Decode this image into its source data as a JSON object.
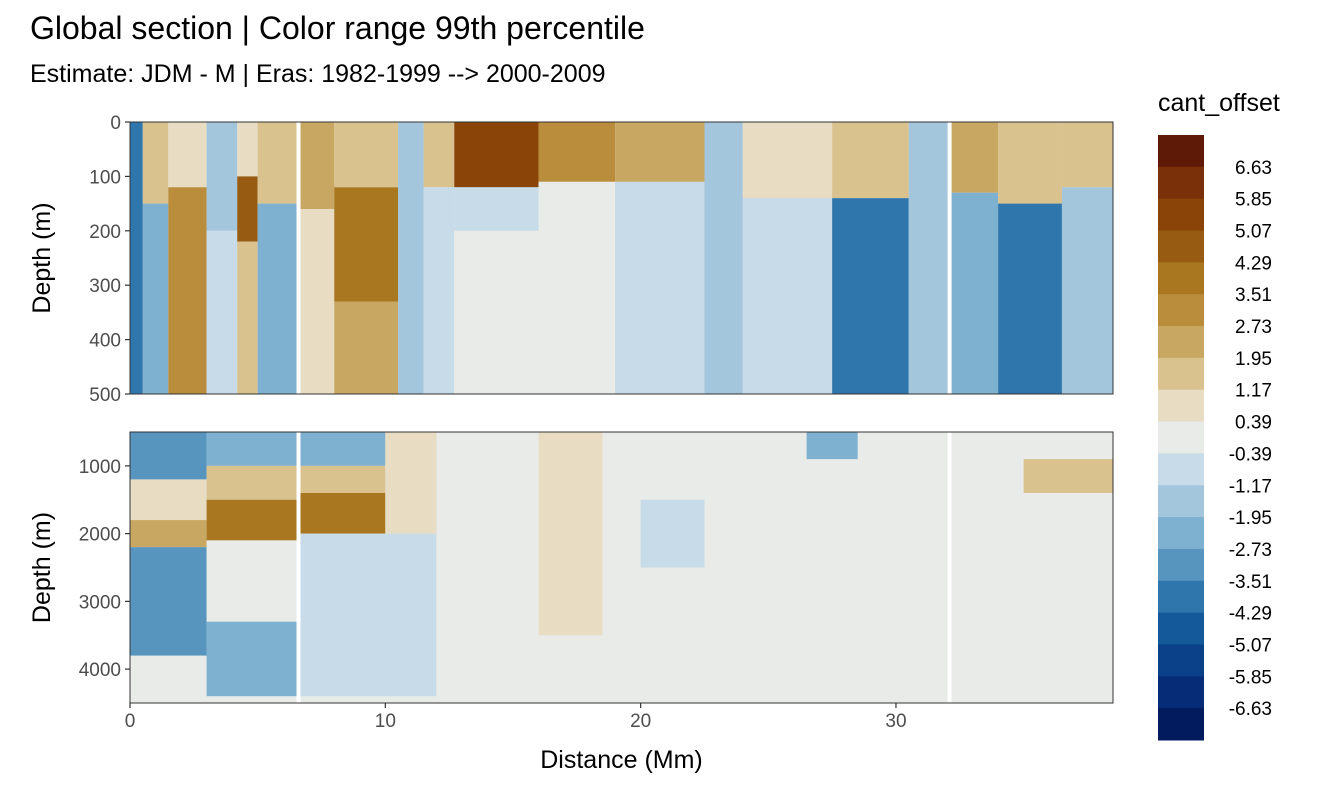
{
  "title": "Global section | Color range 99th percentile",
  "subtitle": "Estimate: JDM - M | Eras: 1982-1999 --> 2000-2009",
  "chart_data": {
    "type": "heatmap",
    "description_panels": [
      "top",
      "bottom"
    ],
    "x_label": "Distance (Mm)",
    "x_range": [
      0,
      38.5
    ],
    "x_ticks": [
      {
        "value": 0,
        "label": "0"
      },
      {
        "value": 10,
        "label": "10"
      },
      {
        "value": 20,
        "label": "20"
      },
      {
        "value": 30,
        "label": "30"
      }
    ],
    "panels": [
      {
        "id": "top",
        "y_label": "Depth (m)",
        "y_range": [
          0,
          500
        ],
        "y_reversed": true,
        "y_ticks": [
          {
            "value": 0,
            "label": "0"
          },
          {
            "value": 100,
            "label": "100"
          },
          {
            "value": 200,
            "label": "200"
          },
          {
            "value": 300,
            "label": "300"
          },
          {
            "value": 400,
            "label": "400"
          },
          {
            "value": 500,
            "label": "500"
          }
        ]
      },
      {
        "id": "bottom",
        "y_label": "Depth (m)",
        "y_range": [
          500,
          4500
        ],
        "y_reversed": true,
        "y_ticks": [
          {
            "value": 1000,
            "label": "1000"
          },
          {
            "value": 2000,
            "label": "2000"
          },
          {
            "value": 3000,
            "label": "3000"
          },
          {
            "value": 4000,
            "label": "4000"
          }
        ]
      }
    ],
    "section_breaks_x": [
      6.6,
      32.1
    ],
    "legend": {
      "title": "cant_offset",
      "labels": [
        "6.63",
        "5.85",
        "5.07",
        "4.29",
        "3.51",
        "2.73",
        "1.95",
        "1.17",
        "0.39",
        "-0.39",
        "-1.17",
        "-1.95",
        "-2.73",
        "-3.51",
        "-4.29",
        "-5.07",
        "-5.85",
        "-6.63"
      ],
      "colors": [
        "#5e1a06",
        "#7a3008",
        "#8a4408",
        "#975b12",
        "#a8771f",
        "#b98d3c",
        "#c8a762",
        "#d9c28d",
        "#e8dcc3",
        "#e8ebe8",
        "#c7dbe8",
        "#a4c6dc",
        "#7eb0cf",
        "#5795bf",
        "#2f76ac",
        "#14599a",
        "#0b4189",
        "#062c78",
        "#021a5e"
      ]
    },
    "regions": {
      "top": [
        {
          "x0": 0,
          "x1": 0.5,
          "y0": 0,
          "y1": 500,
          "v": -5
        },
        {
          "x0": 0.5,
          "x1": 1.5,
          "y0": 0,
          "y1": 150,
          "v": 2
        },
        {
          "x0": 0.5,
          "x1": 1.5,
          "y0": 150,
          "y1": 500,
          "v": -3
        },
        {
          "x0": 1.5,
          "x1": 3.0,
          "y0": 0,
          "y1": 120,
          "v": 1
        },
        {
          "x0": 1.5,
          "x1": 3.0,
          "y0": 120,
          "y1": 500,
          "v": 4
        },
        {
          "x0": 3.0,
          "x1": 4.2,
          "y0": 0,
          "y1": 200,
          "v": -2
        },
        {
          "x0": 3.0,
          "x1": 4.2,
          "y0": 200,
          "y1": 500,
          "v": -1
        },
        {
          "x0": 4.2,
          "x1": 5.0,
          "y0": 0,
          "y1": 100,
          "v": 1
        },
        {
          "x0": 4.2,
          "x1": 5.0,
          "y0": 100,
          "y1": 220,
          "v": 6
        },
        {
          "x0": 4.2,
          "x1": 5.0,
          "y0": 220,
          "y1": 500,
          "v": 2
        },
        {
          "x0": 5.0,
          "x1": 6.6,
          "y0": 0,
          "y1": 150,
          "v": 2
        },
        {
          "x0": 5.0,
          "x1": 6.6,
          "y0": 150,
          "y1": 500,
          "v": -3
        },
        {
          "x0": 6.6,
          "x1": 8.0,
          "y0": 0,
          "y1": 160,
          "v": 3
        },
        {
          "x0": 6.6,
          "x1": 8.0,
          "y0": 160,
          "y1": 500,
          "v": 1
        },
        {
          "x0": 8.0,
          "x1": 10.5,
          "y0": 0,
          "y1": 120,
          "v": 2
        },
        {
          "x0": 8.0,
          "x1": 10.5,
          "y0": 120,
          "y1": 330,
          "v": 5
        },
        {
          "x0": 8.0,
          "x1": 10.5,
          "y0": 330,
          "y1": 500,
          "v": 3
        },
        {
          "x0": 10.5,
          "x1": 11.5,
          "y0": 0,
          "y1": 500,
          "v": -2
        },
        {
          "x0": 11.5,
          "x1": 12.7,
          "y0": 0,
          "y1": 120,
          "v": 2
        },
        {
          "x0": 11.5,
          "x1": 12.7,
          "y0": 120,
          "y1": 500,
          "v": -1
        },
        {
          "x0": 12.7,
          "x1": 16.0,
          "y0": 0,
          "y1": 120,
          "v": 7
        },
        {
          "x0": 12.7,
          "x1": 16.0,
          "y0": 120,
          "y1": 200,
          "v": -1
        },
        {
          "x0": 12.7,
          "x1": 16.0,
          "y0": 200,
          "y1": 500,
          "v": 0
        },
        {
          "x0": 16.0,
          "x1": 19.0,
          "y0": 0,
          "y1": 110,
          "v": 4
        },
        {
          "x0": 16.0,
          "x1": 19.0,
          "y0": 110,
          "y1": 500,
          "v": 0
        },
        {
          "x0": 19.0,
          "x1": 22.5,
          "y0": 0,
          "y1": 110,
          "v": 3
        },
        {
          "x0": 19.0,
          "x1": 22.5,
          "y0": 110,
          "y1": 500,
          "v": -1
        },
        {
          "x0": 22.5,
          "x1": 24.0,
          "y0": 0,
          "y1": 500,
          "v": -2
        },
        {
          "x0": 24.0,
          "x1": 27.5,
          "y0": 0,
          "y1": 140,
          "v": 1
        },
        {
          "x0": 24.0,
          "x1": 27.5,
          "y0": 140,
          "y1": 500,
          "v": -1
        },
        {
          "x0": 27.5,
          "x1": 30.5,
          "y0": 0,
          "y1": 140,
          "v": 2
        },
        {
          "x0": 27.5,
          "x1": 30.5,
          "y0": 140,
          "y1": 500,
          "v": -5
        },
        {
          "x0": 30.5,
          "x1": 32.1,
          "y0": 0,
          "y1": 500,
          "v": -2
        },
        {
          "x0": 32.1,
          "x1": 34.0,
          "y0": 0,
          "y1": 130,
          "v": 3
        },
        {
          "x0": 32.1,
          "x1": 34.0,
          "y0": 130,
          "y1": 500,
          "v": -3
        },
        {
          "x0": 34.0,
          "x1": 36.5,
          "y0": 0,
          "y1": 150,
          "v": 2
        },
        {
          "x0": 34.0,
          "x1": 36.5,
          "y0": 150,
          "y1": 500,
          "v": -5
        },
        {
          "x0": 36.5,
          "x1": 38.5,
          "y0": 0,
          "y1": 120,
          "v": 2
        },
        {
          "x0": 36.5,
          "x1": 38.5,
          "y0": 120,
          "y1": 500,
          "v": -2
        }
      ],
      "bottom": [
        {
          "x0": 0,
          "x1": 3.0,
          "y0": 500,
          "y1": 1200,
          "v": -4
        },
        {
          "x0": 0,
          "x1": 3.0,
          "y0": 1200,
          "y1": 1800,
          "v": 1
        },
        {
          "x0": 0,
          "x1": 3.0,
          "y0": 1800,
          "y1": 2200,
          "v": 3
        },
        {
          "x0": 0,
          "x1": 3.0,
          "y0": 2200,
          "y1": 3800,
          "v": -4
        },
        {
          "x0": 3.0,
          "x1": 6.6,
          "y0": 500,
          "y1": 1000,
          "v": -3
        },
        {
          "x0": 3.0,
          "x1": 6.6,
          "y0": 1000,
          "y1": 1500,
          "v": 2
        },
        {
          "x0": 3.0,
          "x1": 6.6,
          "y0": 1500,
          "y1": 2100,
          "v": 5
        },
        {
          "x0": 3.0,
          "x1": 6.6,
          "y0": 2100,
          "y1": 3300,
          "v": 0
        },
        {
          "x0": 3.0,
          "x1": 6.6,
          "y0": 3300,
          "y1": 4400,
          "v": -3
        },
        {
          "x0": 6.6,
          "x1": 10.0,
          "y0": 500,
          "y1": 1000,
          "v": -3
        },
        {
          "x0": 6.6,
          "x1": 10.0,
          "y0": 1000,
          "y1": 1400,
          "v": 2
        },
        {
          "x0": 6.6,
          "x1": 10.0,
          "y0": 1400,
          "y1": 2000,
          "v": 5
        },
        {
          "x0": 6.6,
          "x1": 10.0,
          "y0": 2000,
          "y1": 4400,
          "v": -1
        },
        {
          "x0": 10.0,
          "x1": 12.0,
          "y0": 500,
          "y1": 2000,
          "v": 1
        },
        {
          "x0": 10.0,
          "x1": 12.0,
          "y0": 2000,
          "y1": 4400,
          "v": -1
        },
        {
          "x0": 12.0,
          "x1": 32.1,
          "y0": 500,
          "y1": 4400,
          "v": 0
        },
        {
          "x0": 16.0,
          "x1": 18.5,
          "y0": 500,
          "y1": 3500,
          "v": 1
        },
        {
          "x0": 20.0,
          "x1": 22.5,
          "y0": 1500,
          "y1": 2500,
          "v": -1
        },
        {
          "x0": 26.5,
          "x1": 28.5,
          "y0": 500,
          "y1": 900,
          "v": -3
        },
        {
          "x0": 32.1,
          "x1": 38.5,
          "y0": 500,
          "y1": 4400,
          "v": 0
        },
        {
          "x0": 35.0,
          "x1": 38.5,
          "y0": 900,
          "y1": 1400,
          "v": 2
        }
      ]
    }
  }
}
